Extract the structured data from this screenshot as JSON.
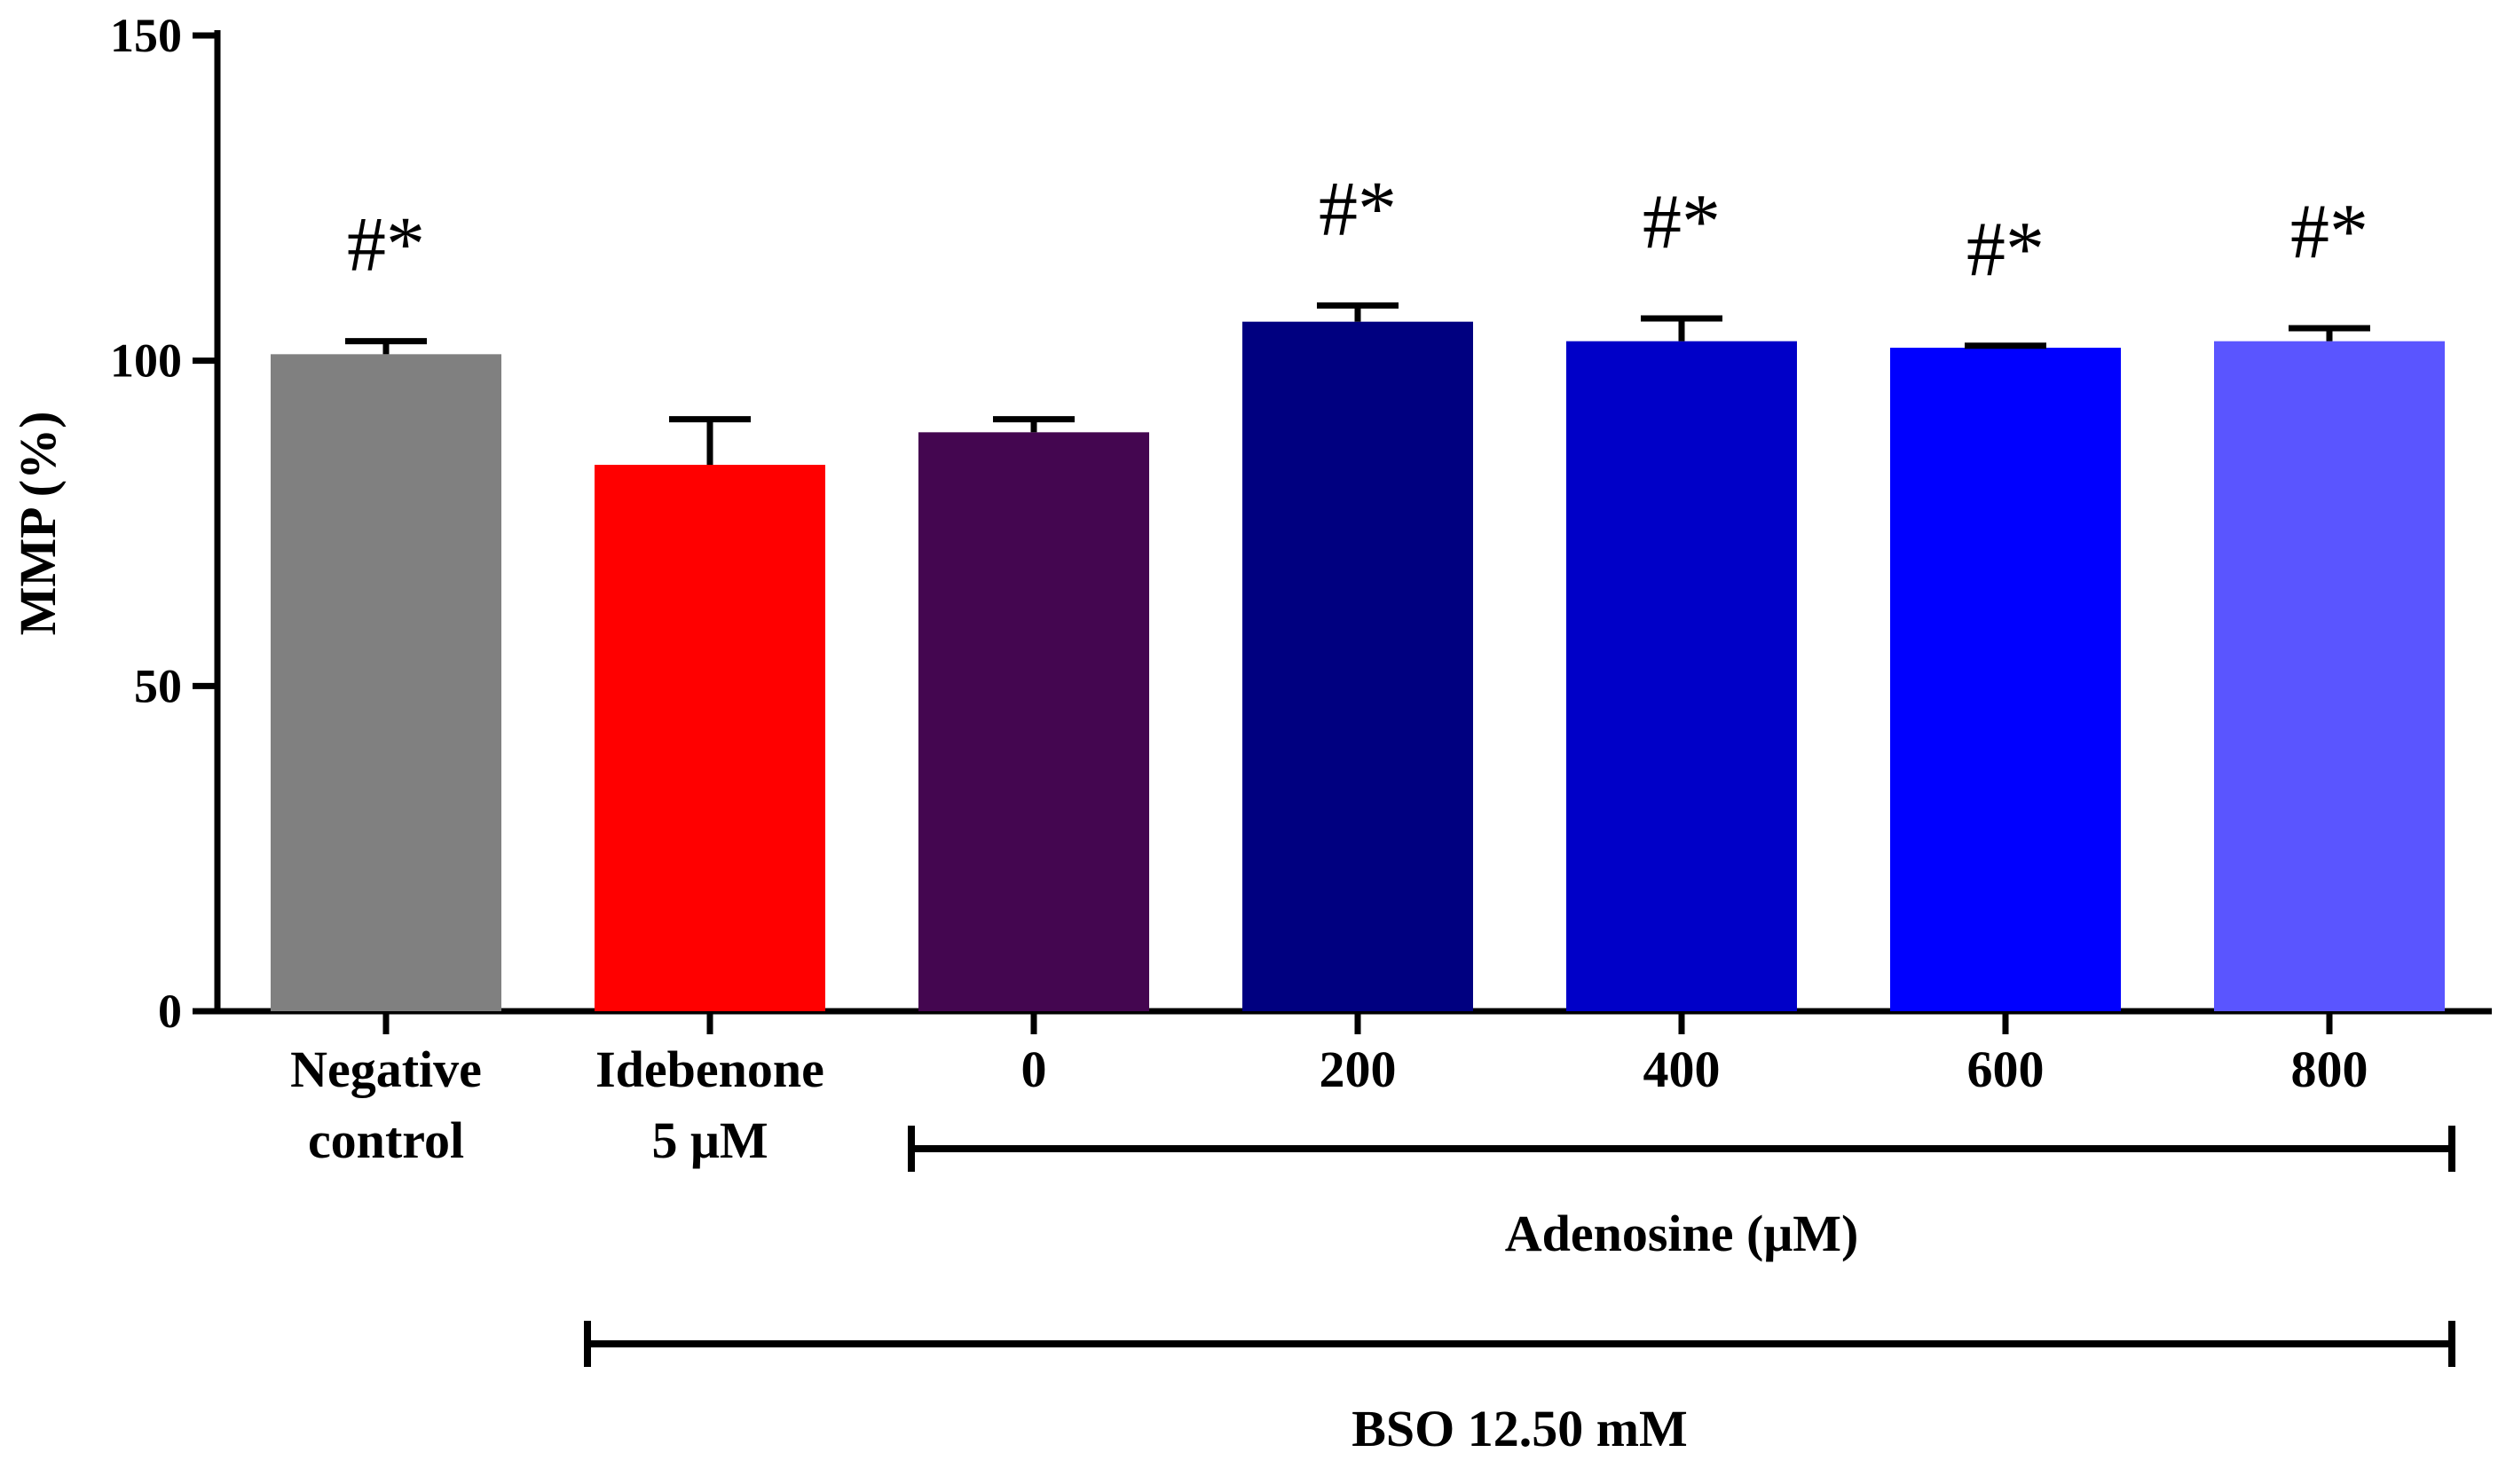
{
  "chart_data": {
    "type": "bar",
    "ylabel": "MMP (%)",
    "ylim": [
      0,
      150
    ],
    "yticks": [
      0,
      50,
      100,
      150
    ],
    "categories": [
      {
        "lines": [
          "Negative",
          "control"
        ],
        "value": 101,
        "error": 2,
        "color": "#808080",
        "annotation": "#*"
      },
      {
        "lines": [
          "Idebenone",
          "5 μM"
        ],
        "value": 84,
        "error": 7,
        "color": "#ff0000",
        "annotation": ""
      },
      {
        "lines": [
          "0"
        ],
        "value": 89,
        "error": 2,
        "color": "#440650",
        "annotation": ""
      },
      {
        "lines": [
          "200"
        ],
        "value": 106,
        "error": 2.5,
        "color": "#000080",
        "annotation": "#*"
      },
      {
        "lines": [
          "400"
        ],
        "value": 103,
        "error": 3.5,
        "color": "#0000c8",
        "annotation": "#*"
      },
      {
        "lines": [
          "600"
        ],
        "value": 102,
        "error": 0.3,
        "color": "#0000ff",
        "annotation": "#*"
      },
      {
        "lines": [
          "800"
        ],
        "value": 103,
        "error": 2,
        "color": "#5a55ff",
        "annotation": "#*"
      }
    ],
    "groups": [
      {
        "label": "Adenosine (μM)",
        "from": 2,
        "to": 6
      },
      {
        "label": "BSO 12.50 mM",
        "from": 1,
        "to": 6
      }
    ]
  }
}
